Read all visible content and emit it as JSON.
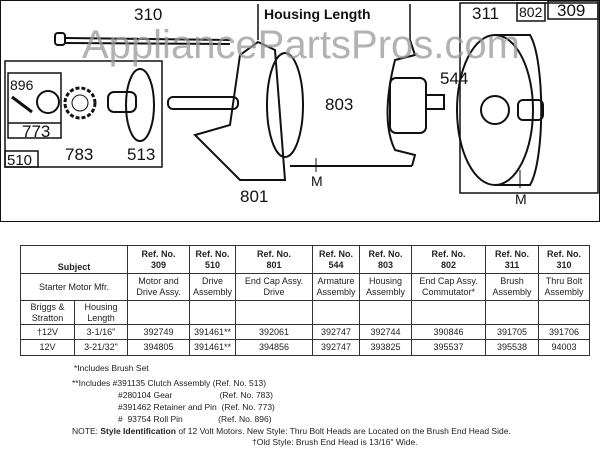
{
  "diagram": {
    "watermark": "AppliancePartsPros.com",
    "housing_length_label": "Housing Length",
    "part_labels": [
      "310",
      "309",
      "802",
      "311",
      "544",
      "803",
      "801",
      "510",
      "896",
      "773",
      "783",
      "513"
    ],
    "dimension_label": "M"
  },
  "table": {
    "subject": "Subject",
    "mfr_label": "Starter Motor Mfr.",
    "briggs": "Briggs & Stratton",
    "housing_length": "Housing Length",
    "columns": [
      {
        "ref": "Ref. No.",
        "num": "309",
        "desc": "Motor and Drive Assy."
      },
      {
        "ref": "Ref. No.",
        "num": "510",
        "desc": "Drive Assembly"
      },
      {
        "ref": "Ref. No.",
        "num": "801",
        "desc": "End Cap Assy. Drive"
      },
      {
        "ref": "Ref. No.",
        "num": "544",
        "desc": "Armature Assembly"
      },
      {
        "ref": "Ref. No.",
        "num": "803",
        "desc": "Housing Assembly"
      },
      {
        "ref": "Ref. No.",
        "num": "802",
        "desc": "End Cap Assy. Commutator*"
      },
      {
        "ref": "Ref. No.",
        "num": "311",
        "desc": "Brush Assembly"
      },
      {
        "ref": "Ref. No.",
        "num": "310",
        "desc": "Thru Bolt Assembly"
      }
    ],
    "rows": [
      {
        "volt": "†12V",
        "length": "3-1/16\"",
        "parts": [
          "392749",
          "391461**",
          "392061",
          "392747",
          "392744",
          "390846",
          "391705",
          "391706"
        ]
      },
      {
        "volt": "12V",
        "length": "3-21/32\"",
        "parts": [
          "394805",
          "391461**",
          "394856",
          "392747",
          "393825",
          "395537",
          "395538",
          "94003"
        ]
      }
    ]
  },
  "notes": {
    "brush": "*Includes Brush Set",
    "includes": [
      "**Includes #391135 Clutch Assembly (Ref. No. 513)",
      "#280104 Gear                    (Ref. No. 783)",
      "#391462 Retainer and Pin  (Ref. No. 773)",
      "#  93754 Roll Pin               (Ref. No. 896)"
    ],
    "note_prefix": "NOTE:",
    "note_bold": "Style Identification",
    "note_text": "of 12 Volt Motors. New Style: Thru Bolt Heads are Located on the Brush End Head Side.",
    "note_line2": "†Old Style: Brush End Head is 13/16\" Wide."
  }
}
